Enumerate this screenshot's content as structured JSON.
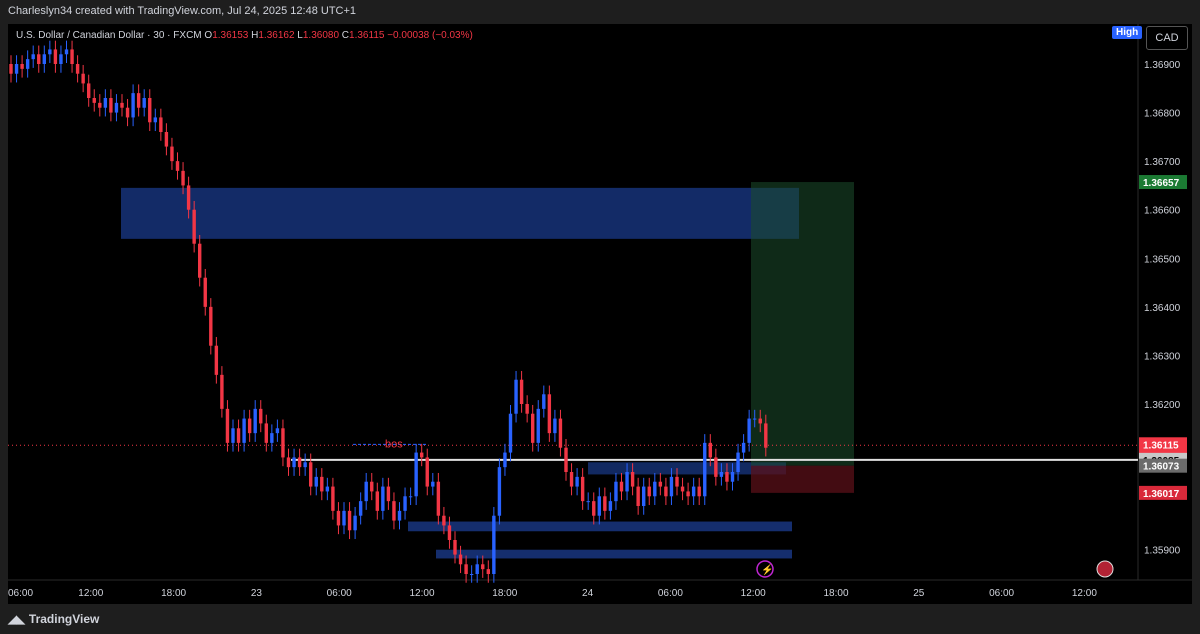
{
  "attribution": "Charleslyn34 created with TradingView.com, Jul 24, 2025 12:48 UTC+1",
  "symbol": {
    "name": "U.S. Dollar / Canadian Dollar · 30 · FXCM",
    "o_label": "O",
    "o": "1.36153",
    "h_label": "H",
    "h": "1.36162",
    "l_label": "L",
    "l": "1.36080",
    "c_label": "C",
    "c": "1.36115",
    "change": "−0.00038 (−0.03%)"
  },
  "high_badge": "High",
  "currency": "CAD",
  "footer_logo": "TradingView",
  "colors": {
    "up": "#2962ff",
    "down": "#f23645",
    "zone": "#1a3a8a",
    "profit": "#1b4d2b",
    "loss": "#5a1018",
    "white_line": "#e0e0e0",
    "current_price": "#f23645",
    "target": "#1b7a33"
  },
  "chart_data": {
    "type": "candlestick",
    "ylim": [
      1.3585,
      1.3697
    ],
    "y_ticks": [
      "1.36900",
      "1.36800",
      "1.36700",
      "1.36600",
      "1.36500",
      "1.36400",
      "1.36300",
      "1.36200",
      "1.35900"
    ],
    "x_ticks": [
      "06:00",
      "12:00",
      "18:00",
      "23",
      "06:00",
      "12:00",
      "18:00",
      "24",
      "06:00",
      "12:00",
      "18:00",
      "25",
      "06:00",
      "12:00"
    ],
    "price_labels": {
      "current": "1.36115",
      "countdown": "11:38",
      "bos_line": "1.36085",
      "entry": "1.36073",
      "stop": "1.36017",
      "target": "1.36657"
    },
    "annotations": {
      "bos": "bos"
    },
    "candles_close": [
      1.3688,
      1.369,
      1.3689,
      1.3691,
      1.3692,
      1.369,
      1.3692,
      1.3693,
      1.369,
      1.3692,
      1.3693,
      1.369,
      1.3688,
      1.3686,
      1.3683,
      1.3682,
      1.3681,
      1.3683,
      1.368,
      1.3682,
      1.3681,
      1.3679,
      1.3684,
      1.3681,
      1.3683,
      1.3678,
      1.3679,
      1.3676,
      1.3673,
      1.367,
      1.3668,
      1.3665,
      1.366,
      1.3653,
      1.3646,
      1.364,
      1.3632,
      1.3626,
      1.3619,
      1.3612,
      1.3615,
      1.3612,
      1.3617,
      1.3614,
      1.3619,
      1.3616,
      1.3612,
      1.3614,
      1.3615,
      1.3609,
      1.3607,
      1.3609,
      1.3607,
      1.3608,
      1.3603,
      1.3605,
      1.3602,
      1.3603,
      1.3598,
      1.3595,
      1.3598,
      1.3594,
      1.3597,
      1.36,
      1.3604,
      1.3602,
      1.3598,
      1.3603,
      1.36,
      1.3596,
      1.3598,
      1.3601,
      1.3601,
      1.361,
      1.3609,
      1.3603,
      1.3604,
      1.3597,
      1.3595,
      1.3592,
      1.3589,
      1.3587,
      1.3585,
      1.3585,
      1.3587,
      1.3586,
      1.3585,
      1.3597,
      1.3607,
      1.361,
      1.3618,
      1.3625,
      1.362,
      1.3618,
      1.3612,
      1.3619,
      1.3622,
      1.3614,
      1.3617,
      1.3611,
      1.3606,
      1.3603,
      1.3605,
      1.36,
      1.36,
      1.3597,
      1.3601,
      1.3598,
      1.36,
      1.3604,
      1.3602,
      1.3606,
      1.3603,
      1.3599,
      1.3603,
      1.3601,
      1.3604,
      1.3603,
      1.3601,
      1.3605,
      1.3603,
      1.3602,
      1.3601,
      1.3603,
      1.3601,
      1.3612,
      1.3609,
      1.3605,
      1.3606,
      1.3604,
      1.3606,
      1.361,
      1.3612,
      1.3617,
      1.3617,
      1.3616,
      1.3611
    ]
  }
}
